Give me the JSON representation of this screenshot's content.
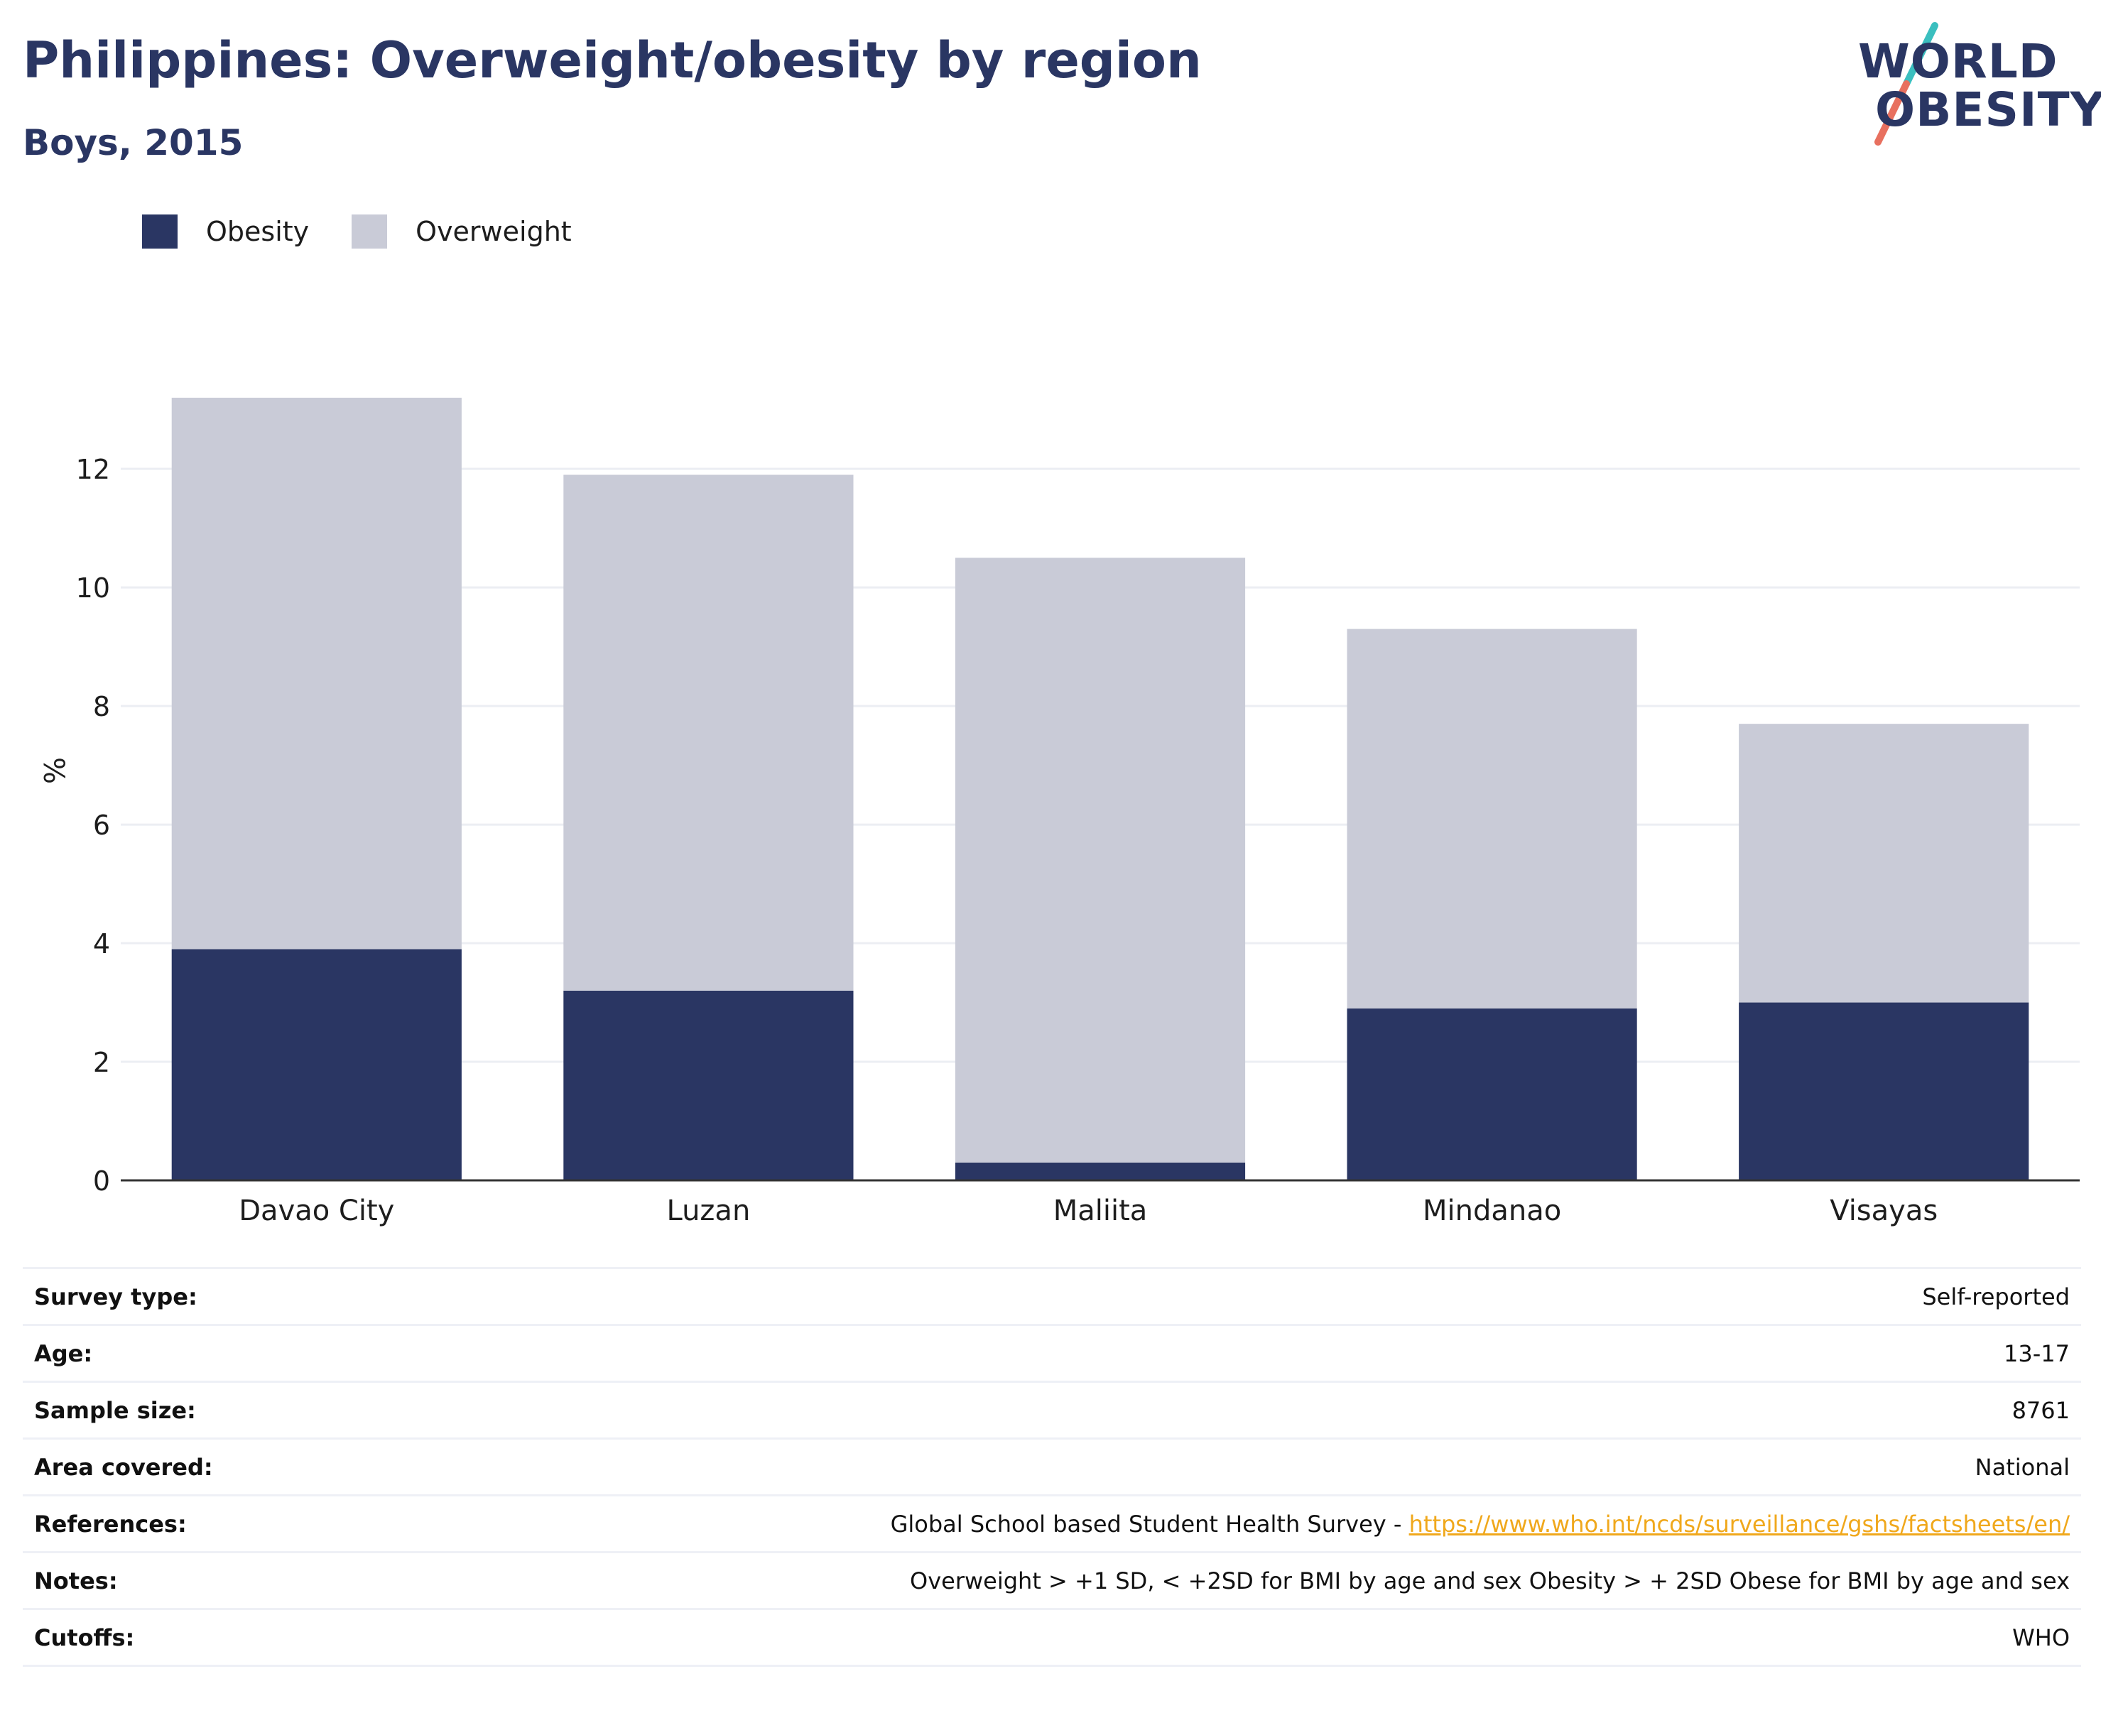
{
  "header": {
    "title": "Philippines: Overweight/obesity by region",
    "subtitle": "Boys, 2015"
  },
  "logo": {
    "line1": "WORLD",
    "line2": "OBESITY",
    "accent_teal": "#3bbfbf",
    "accent_coral": "#e8705f"
  },
  "colors": {
    "obesity": "#2a3663",
    "overweight": "#c9cbd7",
    "gridline": "#eceef3",
    "link": "#f0a81c"
  },
  "chart_data": {
    "type": "bar",
    "stacked": true,
    "categories": [
      "Davao City",
      "Luzan",
      "Maliita",
      "Mindanao",
      "Visayas"
    ],
    "series": [
      {
        "name": "Obesity",
        "values": [
          3.9,
          3.2,
          0.3,
          2.9,
          3.0
        ]
      },
      {
        "name": "Overweight",
        "values": [
          9.3,
          8.7,
          10.2,
          6.4,
          4.7
        ]
      }
    ],
    "ylabel": "%",
    "xlabel": "",
    "ylim": [
      0,
      13.2
    ],
    "yticks": [
      0,
      2,
      4,
      6,
      8,
      10,
      12
    ],
    "grid": true,
    "legend": "top-left"
  },
  "info_table": [
    {
      "label": "Survey type:",
      "value": "Self-reported"
    },
    {
      "label": "Age:",
      "value": "13-17"
    },
    {
      "label": "Sample size:",
      "value": "8761"
    },
    {
      "label": "Area covered:",
      "value": "National"
    },
    {
      "label": "References:",
      "value": "Global School based Student Health Survey - ",
      "link": "https://www.who.int/ncds/surveillance/gshs/factsheets/en/"
    },
    {
      "label": "Notes:",
      "value": "Overweight > +1 SD, < +2SD for BMI by age and sex Obesity > + 2SD Obese for BMI by age and sex"
    },
    {
      "label": "Cutoffs:",
      "value": "WHO"
    }
  ]
}
